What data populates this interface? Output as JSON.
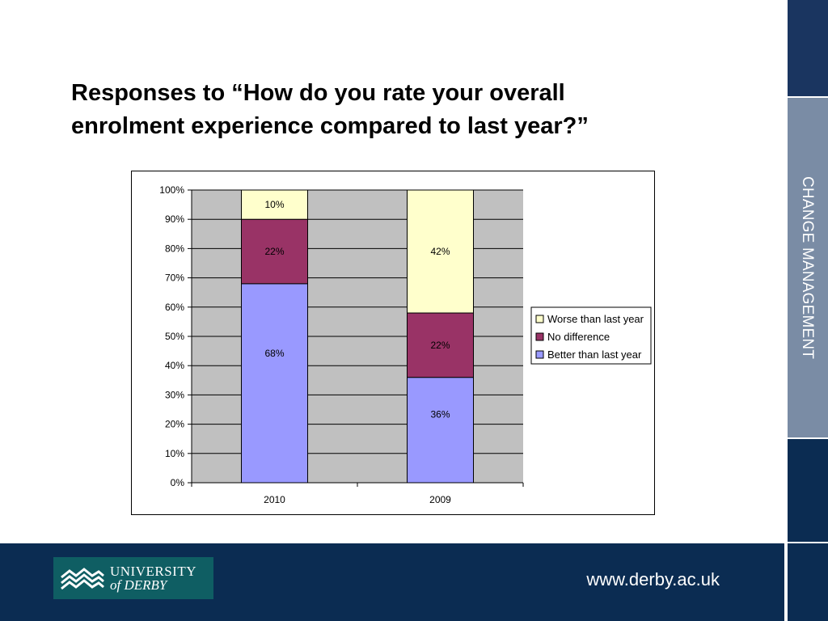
{
  "slide": {
    "title_line1": "Responses to “How do you rate your overall",
    "title_line2": "enrolment experience compared to last year?”",
    "side_label": "CHANGE MANAGEMENT",
    "footer_url": "www.derby.ac.uk",
    "logo": {
      "line1": "UNIVERSITY",
      "line2": "of DERBY"
    }
  },
  "colors": {
    "better": "#9999ff",
    "no_difference": "#993366",
    "worse": "#ffffcc",
    "plot_background": "#c0c0c0",
    "footer": "#0b2c52",
    "sidebar_dark": "#1a3560",
    "sidebar_mid": "#7a8ca5"
  },
  "chart_data": {
    "type": "bar",
    "stacked": true,
    "percent_stacked": true,
    "categories": [
      "2010",
      "2009"
    ],
    "series": [
      {
        "name": "Better than last year",
        "values": [
          68,
          36
        ],
        "labels": [
          "68%",
          "36%"
        ],
        "color": "#9999ff"
      },
      {
        "name": "No difference",
        "values": [
          22,
          22
        ],
        "labels": [
          "22%",
          "22%"
        ],
        "color": "#993366"
      },
      {
        "name": "Worse than last year",
        "values": [
          10,
          42
        ],
        "labels": [
          "10%",
          "42%"
        ],
        "color": "#ffffcc"
      }
    ],
    "ylim": [
      0,
      100
    ],
    "yticks": [
      "0%",
      "10%",
      "20%",
      "30%",
      "40%",
      "50%",
      "60%",
      "70%",
      "80%",
      "90%",
      "100%"
    ],
    "grid": true,
    "legend_position": "right"
  }
}
